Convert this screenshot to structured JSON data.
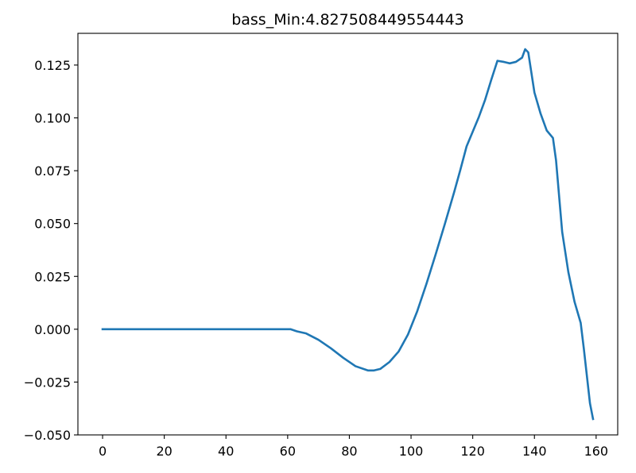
{
  "chart_data": {
    "type": "line",
    "title": "bass_Min:4.827508449554443",
    "xlabel": "",
    "ylabel": "",
    "xlim": [
      -8,
      167
    ],
    "ylim": [
      -0.05,
      0.14
    ],
    "xticks": [
      0,
      20,
      40,
      60,
      80,
      100,
      120,
      140,
      160
    ],
    "xtick_labels": [
      "0",
      "20",
      "40",
      "60",
      "80",
      "100",
      "120",
      "140",
      "160"
    ],
    "yticks": [
      -0.05,
      -0.025,
      0.0,
      0.025,
      0.05,
      0.075,
      0.1,
      0.125
    ],
    "ytick_labels": [
      "−0.050",
      "−0.025",
      "0.000",
      "0.025",
      "0.050",
      "0.075",
      "0.100",
      "0.125"
    ],
    "grid": false,
    "legend": "none",
    "series": [
      {
        "color": "#1f77b4",
        "x": [
          0,
          10,
          20,
          30,
          40,
          50,
          61,
          63,
          66,
          70,
          74,
          78,
          82,
          86,
          88,
          90,
          93,
          96,
          99,
          102,
          105,
          108,
          111,
          114,
          116,
          118,
          120,
          122,
          124,
          126,
          127,
          128,
          130,
          132,
          134,
          136,
          137,
          138,
          140,
          142,
          144,
          146,
          147,
          149,
          151,
          153,
          155,
          156,
          158,
          159
        ],
        "y": [
          0.0,
          0.0,
          0.0,
          0.0,
          0.0,
          0.0,
          0.0,
          -0.001,
          -0.002,
          -0.005,
          -0.009,
          -0.0135,
          -0.0175,
          -0.0195,
          -0.0195,
          -0.0188,
          -0.0155,
          -0.0105,
          -0.0025,
          0.0085,
          0.0215,
          0.0355,
          0.05,
          0.065,
          0.0755,
          0.0865,
          0.0935,
          0.1005,
          0.1085,
          0.118,
          0.1225,
          0.127,
          0.1265,
          0.1258,
          0.1265,
          0.1285,
          0.1325,
          0.131,
          0.112,
          0.102,
          0.094,
          0.0905,
          0.08,
          0.046,
          0.027,
          0.013,
          0.003,
          -0.009,
          -0.035,
          -0.0425
        ]
      }
    ]
  }
}
